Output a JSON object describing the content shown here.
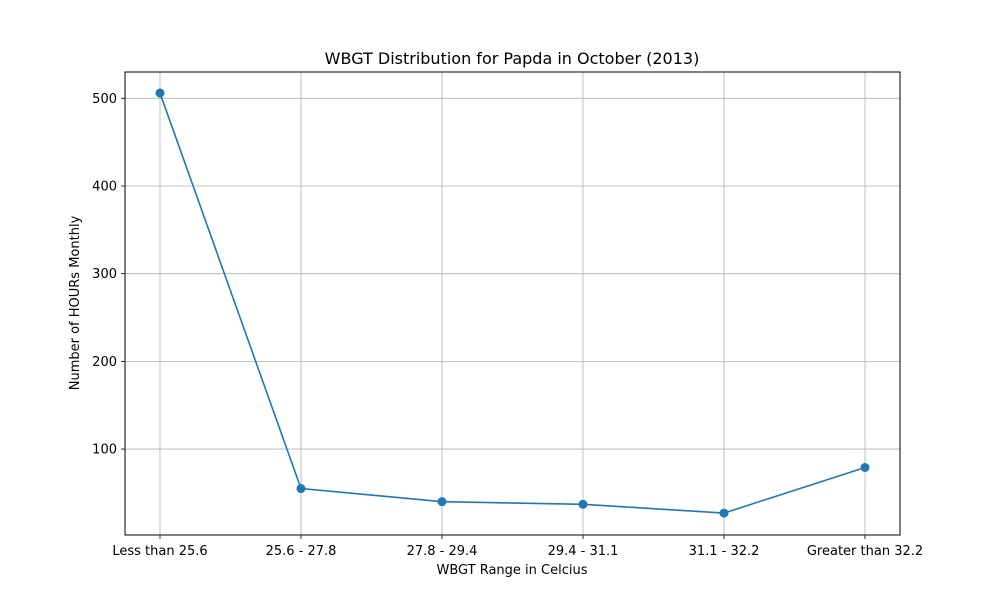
{
  "chart_data": {
    "type": "line",
    "title": "WBGT Distribution for Papda in October (2013)",
    "xlabel": "WBGT Range in Celcius",
    "ylabel": "Number of HOURs Monthly",
    "categories": [
      "Less than 25.6",
      "25.6 - 27.8",
      "27.8 - 29.4",
      "29.4 - 31.1",
      "31.1 - 32.2",
      "Greater than 32.2"
    ],
    "series": [
      {
        "values": [
          506,
          55,
          40,
          37,
          27,
          79
        ],
        "color": "#1f77b4",
        "marker": "circle"
      }
    ],
    "yticks": [
      100,
      200,
      300,
      400,
      500
    ],
    "ylim": [
      2,
      530
    ],
    "grid": true
  }
}
